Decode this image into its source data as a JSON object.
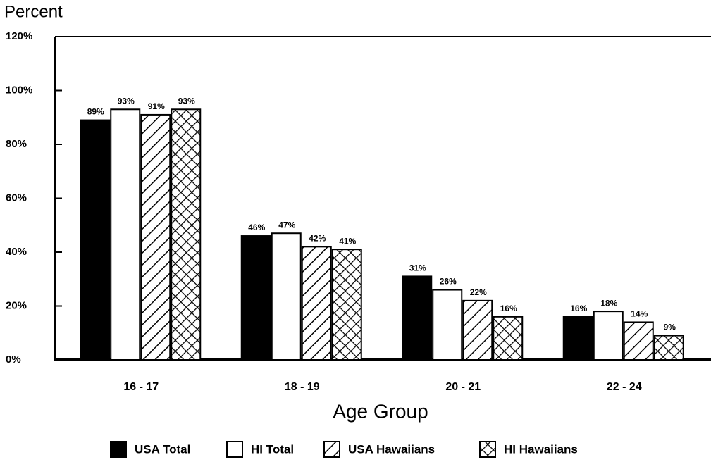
{
  "chart_data": {
    "type": "bar",
    "y_axis_label": "Percent",
    "x_axis_label": "Age Group",
    "categories": [
      "16 - 17",
      "18 - 19",
      "20 - 21",
      "22 - 24"
    ],
    "series": [
      {
        "name": "USA Total",
        "color": "#000000",
        "pattern": "solid",
        "values": [
          89,
          46,
          31,
          16
        ],
        "value_labels": [
          "89%",
          "46%",
          "31%",
          "16%"
        ]
      },
      {
        "name": "HI Total",
        "color": "#ffffff",
        "pattern": "solid",
        "values": [
          93,
          47,
          26,
          18
        ],
        "value_labels": [
          "93%",
          "47%",
          "26%",
          "18%"
        ]
      },
      {
        "name": "USA Hawaiians",
        "color": "#000000",
        "pattern": "diagonal",
        "values": [
          91,
          42,
          22,
          14
        ],
        "value_labels": [
          "91%",
          "42%",
          "22%",
          "14%"
        ]
      },
      {
        "name": "HI Hawaiians",
        "color": "#000000",
        "pattern": "crosshatch",
        "values": [
          93,
          41,
          16,
          9
        ],
        "value_labels": [
          "93%",
          "41%",
          "16%",
          "9%"
        ]
      }
    ],
    "ylim": [
      0,
      120
    ],
    "yticks": [
      {
        "value": 0,
        "label": "0%"
      },
      {
        "value": 20,
        "label": "20%"
      },
      {
        "value": 40,
        "label": "40%"
      },
      {
        "value": 60,
        "label": "60%"
      },
      {
        "value": 80,
        "label": "80%"
      },
      {
        "value": 100,
        "label": "100%"
      },
      {
        "value": 120,
        "label": "120%"
      }
    ],
    "legend": "bottom"
  }
}
